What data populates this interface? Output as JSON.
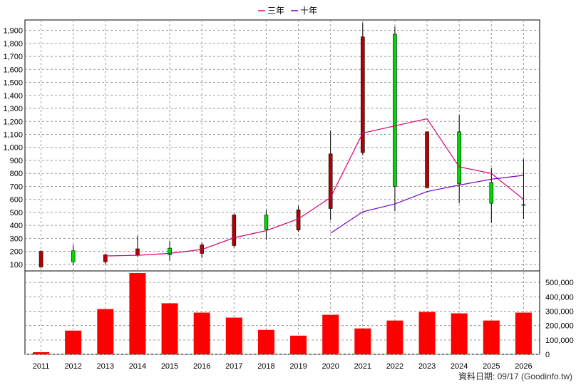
{
  "chart_data": {
    "type": "candlestick+line+bar",
    "x": [
      "2011",
      "2012",
      "2013",
      "2014",
      "2015",
      "2016",
      "2017",
      "2018",
      "2019",
      "2020",
      "2021",
      "2022",
      "2023",
      "2024",
      "2025",
      "2026"
    ],
    "price_panel": {
      "ylim": [
        50,
        1980
      ],
      "yticks": [
        100,
        200,
        300,
        400,
        500,
        600,
        700,
        800,
        900,
        1000,
        1100,
        1200,
        1300,
        1400,
        1500,
        1600,
        1700,
        1800,
        1900
      ],
      "candles": [
        {
          "x": "2011",
          "open": 200,
          "close": 80,
          "high": 210,
          "low": 75
        },
        {
          "x": "2012",
          "open": 120,
          "close": 205,
          "high": 250,
          "low": 95
        },
        {
          "x": "2013",
          "open": 175,
          "close": 120,
          "high": 180,
          "low": 100
        },
        {
          "x": "2014",
          "open": 220,
          "close": 170,
          "high": 320,
          "low": 160
        },
        {
          "x": "2015",
          "open": 175,
          "close": 225,
          "high": 280,
          "low": 130
        },
        {
          "x": "2016",
          "open": 250,
          "close": 185,
          "high": 270,
          "low": 150
        },
        {
          "x": "2017",
          "open": 480,
          "close": 245,
          "high": 490,
          "low": 230
        },
        {
          "x": "2018",
          "open": 370,
          "close": 480,
          "high": 520,
          "low": 290
        },
        {
          "x": "2019",
          "open": 520,
          "close": 365,
          "high": 550,
          "low": 350
        },
        {
          "x": "2020",
          "open": 950,
          "close": 530,
          "high": 1130,
          "low": 440
        },
        {
          "x": "2021",
          "open": 1850,
          "close": 960,
          "high": 1960,
          "low": 940
        },
        {
          "x": "2022",
          "open": 700,
          "close": 1870,
          "high": 1930,
          "low": 510
        },
        {
          "x": "2023",
          "open": 1120,
          "close": 690,
          "high": 1120,
          "low": 690
        },
        {
          "x": "2024",
          "open": 720,
          "close": 1120,
          "high": 1250,
          "low": 570
        },
        {
          "x": "2025",
          "open": 570,
          "close": 730,
          "high": 840,
          "low": 420
        },
        {
          "x": "2026",
          "open": 560,
          "close": 560,
          "high": 910,
          "low": 450
        }
      ],
      "series": [
        {
          "name": "三年",
          "color": "#d6006e",
          "values": [
            null,
            null,
            165,
            170,
            185,
            215,
            305,
            360,
            450,
            615,
            1110,
            1165,
            1220,
            850,
            800,
            600
          ]
        },
        {
          "name": "十年",
          "color": "#7a00c8",
          "values": [
            null,
            null,
            null,
            null,
            null,
            null,
            null,
            null,
            null,
            340,
            505,
            565,
            660,
            710,
            755,
            785
          ]
        }
      ]
    },
    "volume_panel": {
      "ylim": [
        0,
        580000
      ],
      "yticks": [
        0,
        100000,
        200000,
        300000,
        400000,
        500000
      ],
      "ytick_labels": [
        "0",
        "100,000",
        "200,000",
        "300,000",
        "400,000",
        "500,000"
      ],
      "values": [
        15000,
        165000,
        315000,
        565000,
        355000,
        290000,
        255000,
        170000,
        130000,
        275000,
        180000,
        235000,
        295000,
        285000,
        235000,
        290000
      ],
      "bar_color": "#ff0000"
    },
    "grid": true,
    "legend": {
      "placement": "top-center",
      "entries": [
        "三年",
        "十年"
      ]
    }
  },
  "footer": {
    "source": "資料日期: 09/17  (Goodinfo.tw)"
  }
}
